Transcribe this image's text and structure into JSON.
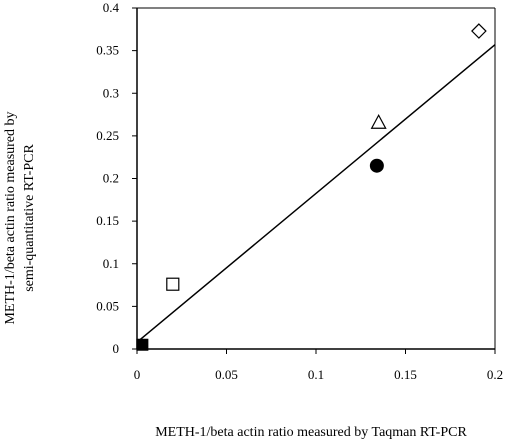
{
  "chart_data": {
    "type": "scatter",
    "title": "",
    "xlabel": "METH-1/beta actin ratio measured by Taqman RT-PCR",
    "ylabel_lines": [
      "METH-1/beta actin ratio measured by",
      "semi-quantitative RT-PCR"
    ],
    "xlim": [
      0,
      0.2
    ],
    "ylim": [
      0,
      0.4
    ],
    "x_ticks": [
      "0",
      "0.05",
      "0.1",
      "0.15",
      "0.2"
    ],
    "x_tick_values": [
      0,
      0.05,
      0.1,
      0.15,
      0.2
    ],
    "y_ticks": [
      "0",
      "0.05",
      "0.1",
      "0.15",
      "0.2",
      "0.25",
      "0.3",
      "0.35",
      "0.4"
    ],
    "y_tick_values": [
      0,
      0.05,
      0.1,
      0.15,
      0.2,
      0.25,
      0.3,
      0.35,
      0.4
    ],
    "grid": false,
    "points": [
      {
        "x": 0.003,
        "y": 0.005,
        "marker": "filled-square"
      },
      {
        "x": 0.02,
        "y": 0.076,
        "marker": "open-square"
      },
      {
        "x": 0.134,
        "y": 0.215,
        "marker": "filled-circle"
      },
      {
        "x": 0.135,
        "y": 0.266,
        "marker": "open-triangle"
      },
      {
        "x": 0.191,
        "y": 0.373,
        "marker": "open-diamond"
      }
    ],
    "trendline": {
      "x": [
        0,
        0.2
      ],
      "y": [
        0.008,
        0.357
      ]
    }
  }
}
